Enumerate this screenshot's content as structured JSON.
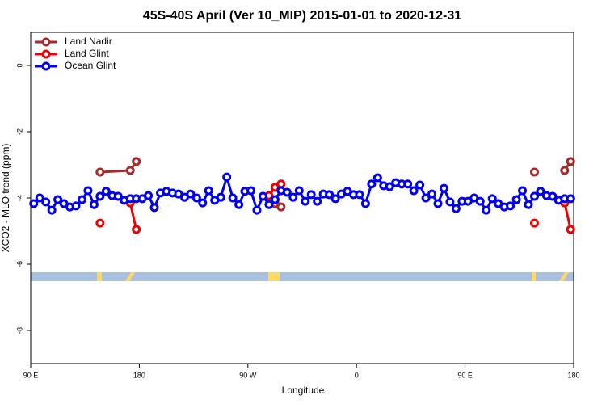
{
  "chart_data": {
    "type": "line",
    "title": "45S-40S April (Ver 10_MIP)   2015-01-01 to 2020-12-31",
    "x_label": "Longitude",
    "y_label": "XCO2 - MLO trend (ppm)",
    "xlim": [
      90,
      540
    ],
    "xticks": [
      {
        "value": 90,
        "label": "90 E"
      },
      180,
      {
        "value": 270,
        "label": "90 W"
      },
      {
        "value": 360,
        "label": "0"
      },
      {
        "value": 450,
        "label": "90 E"
      },
      {
        "value": 540,
        "label": "180"
      }
    ],
    "ylim": [
      -9,
      1
    ],
    "yticks": [
      0,
      -2,
      -4,
      -6,
      -8
    ],
    "legend": "top-left",
    "series": [
      {
        "name": "Land Nadir",
        "color": "#a52a2a",
        "x": [
          147.5,
          172.5,
          177.5,
          182.5,
          292.5,
          297.5,
          302.5,
          507.5,
          522.5,
          532.5,
          537.5
        ],
        "values": [
          -3.22,
          -3.17,
          -2.9,
          null,
          -4.17,
          -4.27,
          null,
          -3.22,
          null,
          -3.17,
          -2.9
        ]
      },
      {
        "name": "Land Glint",
        "color": "#ee0000",
        "x": [
          147.5,
          162.5,
          172.5,
          177.5,
          182.5,
          287.5,
          292.5,
          297.5,
          302.5,
          507.5,
          522.5,
          532.5,
          537.5
        ],
        "values": [
          -4.76,
          null,
          -4.15,
          -4.95,
          null,
          -3.93,
          -3.68,
          -3.58,
          null,
          -4.76,
          null,
          -4.15,
          -4.95
        ]
      },
      {
        "name": "Ocean Glint",
        "color": "#0000ee",
        "x": [
          92.5,
          97.5,
          102.5,
          107.5,
          112.5,
          117.5,
          122.5,
          127.5,
          132.5,
          137.5,
          142.5,
          147.5,
          152.5,
          157.5,
          162.5,
          167.5,
          172.5,
          177.5,
          182.5,
          187.5,
          192.5,
          197.5,
          202.5,
          207.5,
          212.5,
          217.5,
          222.5,
          227.5,
          232.5,
          237.5,
          242.5,
          247.5,
          252.5,
          257.5,
          262.5,
          267.5,
          272.5,
          277.5,
          282.5,
          287.5,
          292.5,
          297.5,
          302.5,
          307.5,
          312.5,
          317.5,
          322.5,
          327.5,
          332.5,
          337.5,
          342.5,
          347.5,
          352.5,
          357.5,
          362.5,
          367.5,
          372.5,
          377.5,
          382.5,
          387.5,
          392.5,
          397.5,
          402.5,
          407.5,
          412.5,
          417.5,
          422.5,
          427.5,
          432.5,
          437.5,
          442.5,
          447.5,
          452.5,
          457.5,
          462.5,
          467.5,
          472.5,
          477.5,
          482.5,
          487.5,
          492.5,
          497.5,
          502.5,
          507.5,
          512.5,
          517.5,
          522.5,
          527.5,
          532.5,
          537.5
        ],
        "values": [
          -4.17,
          -4.0,
          -4.12,
          -4.37,
          -4.05,
          -4.17,
          -4.27,
          -4.24,
          -4.05,
          -3.78,
          -4.2,
          -3.95,
          -3.8,
          -3.93,
          -3.95,
          -4.07,
          -4.02,
          -4.02,
          -4.02,
          -3.93,
          -4.29,
          -3.85,
          -3.8,
          -3.85,
          -3.88,
          -3.98,
          -3.88,
          -4.0,
          -4.15,
          -3.78,
          -4.07,
          -3.98,
          -3.37,
          -4.0,
          -4.2,
          -3.8,
          -3.78,
          -4.37,
          -3.95,
          -4.2,
          -4.05,
          -3.78,
          -3.83,
          -3.98,
          -3.78,
          -4.1,
          -3.9,
          -4.1,
          -3.88,
          -3.9,
          -4.02,
          -3.88,
          -3.8,
          -3.9,
          -3.9,
          -4.17,
          -3.58,
          -3.39,
          -3.63,
          -3.66,
          -3.54,
          -3.58,
          -3.58,
          -3.78,
          -3.61,
          -4.0,
          -3.88,
          -4.17,
          -3.71,
          -4.12,
          -4.32,
          -4.1,
          -4.1,
          -4.0,
          -4.1,
          -4.37,
          -4.02,
          -4.17,
          -4.27,
          -4.24,
          -4.05,
          -3.78,
          -4.2,
          -3.95,
          -3.8,
          -3.93,
          -3.95,
          -4.07,
          -4.02,
          -4.02
        ]
      }
    ]
  }
}
